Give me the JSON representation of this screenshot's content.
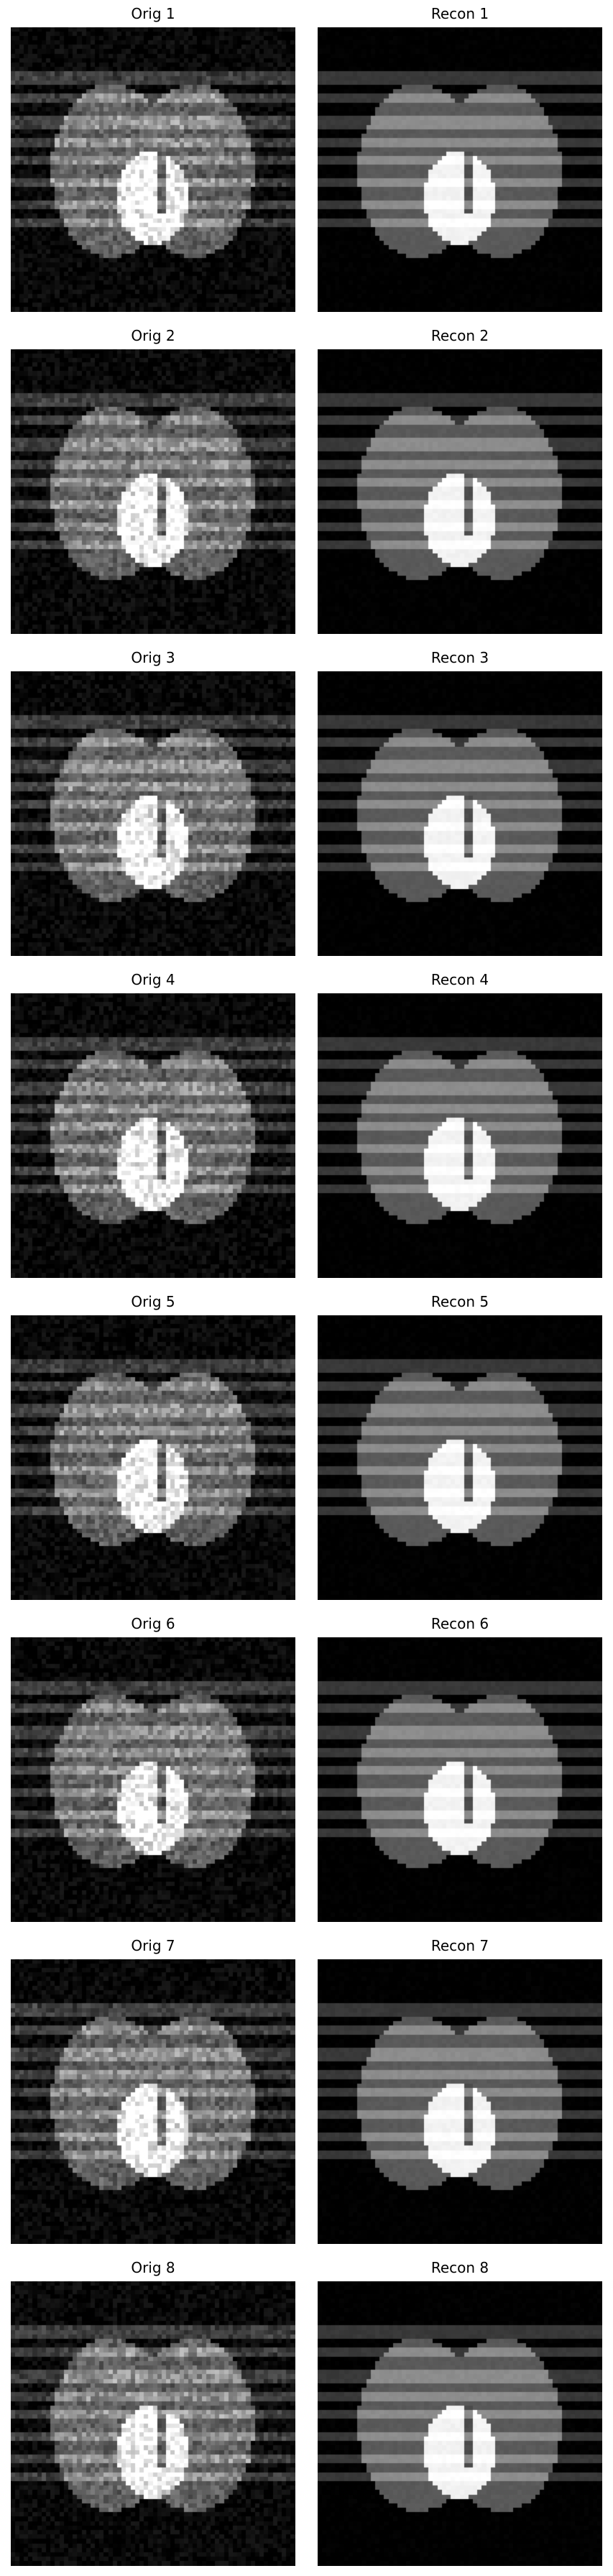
{
  "panels": [
    {
      "title": "Orig 1",
      "kind": "original",
      "noise_level": 0.55
    },
    {
      "title": "Recon 1",
      "kind": "reconstruction",
      "noise_level": 0.12
    },
    {
      "title": "Orig 2",
      "kind": "original",
      "noise_level": 0.55
    },
    {
      "title": "Recon 2",
      "kind": "reconstruction",
      "noise_level": 0.12
    },
    {
      "title": "Orig 3",
      "kind": "original",
      "noise_level": 0.55
    },
    {
      "title": "Recon 3",
      "kind": "reconstruction",
      "noise_level": 0.12
    },
    {
      "title": "Orig 4",
      "kind": "original",
      "noise_level": 0.55
    },
    {
      "title": "Recon 4",
      "kind": "reconstruction",
      "noise_level": 0.12
    },
    {
      "title": "Orig 5",
      "kind": "original",
      "noise_level": 0.55
    },
    {
      "title": "Recon 5",
      "kind": "reconstruction",
      "noise_level": 0.12
    },
    {
      "title": "Orig 6",
      "kind": "original",
      "noise_level": 0.55
    },
    {
      "title": "Recon 6",
      "kind": "reconstruction",
      "noise_level": 0.12
    },
    {
      "title": "Orig 7",
      "kind": "original",
      "noise_level": 0.55
    },
    {
      "title": "Recon 7",
      "kind": "reconstruction",
      "noise_level": 0.12
    },
    {
      "title": "Orig 8",
      "kind": "original",
      "noise_level": 0.55
    },
    {
      "title": "Recon 8",
      "kind": "reconstruction",
      "noise_level": 0.12
    }
  ],
  "colors": {
    "page_background": "#ffffff",
    "image_background": "#000000",
    "title_text": "#000000"
  }
}
